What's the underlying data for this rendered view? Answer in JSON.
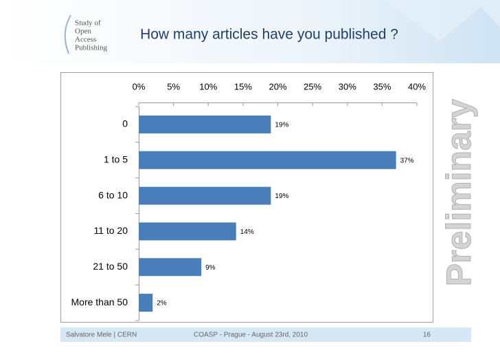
{
  "chart_data": {
    "type": "bar",
    "orientation": "horizontal",
    "title": "How many articles have you published ?",
    "categories": [
      "0",
      "1 to 5",
      "6 to 10",
      "11 to 20",
      "21 to 50",
      "More than 50"
    ],
    "values": [
      19,
      37,
      19,
      14,
      9,
      2
    ],
    "value_labels": [
      "19%",
      "37%",
      "19%",
      "14%",
      "9%",
      "2%"
    ],
    "color": "#4a7ebb",
    "xlim": [
      0,
      40
    ],
    "xticks": [
      {
        "value": 0,
        "label": "0%"
      },
      {
        "value": 5,
        "label": "5%"
      },
      {
        "value": 10,
        "label": "10%"
      },
      {
        "value": 15,
        "label": "15%"
      },
      {
        "value": 20,
        "label": "20%"
      },
      {
        "value": 25,
        "label": "25%"
      },
      {
        "value": 30,
        "label": "30%"
      },
      {
        "value": 35,
        "label": "35%"
      },
      {
        "value": 40,
        "label": "40%"
      }
    ]
  },
  "logo": [
    "Study of",
    "Open",
    "Access",
    "Publishing"
  ],
  "watermark": "Preliminary",
  "footer": {
    "left": "Salvatore Mele | CERN",
    "center": "COASP - Prague - August 23rd, 2010",
    "page": "16"
  }
}
